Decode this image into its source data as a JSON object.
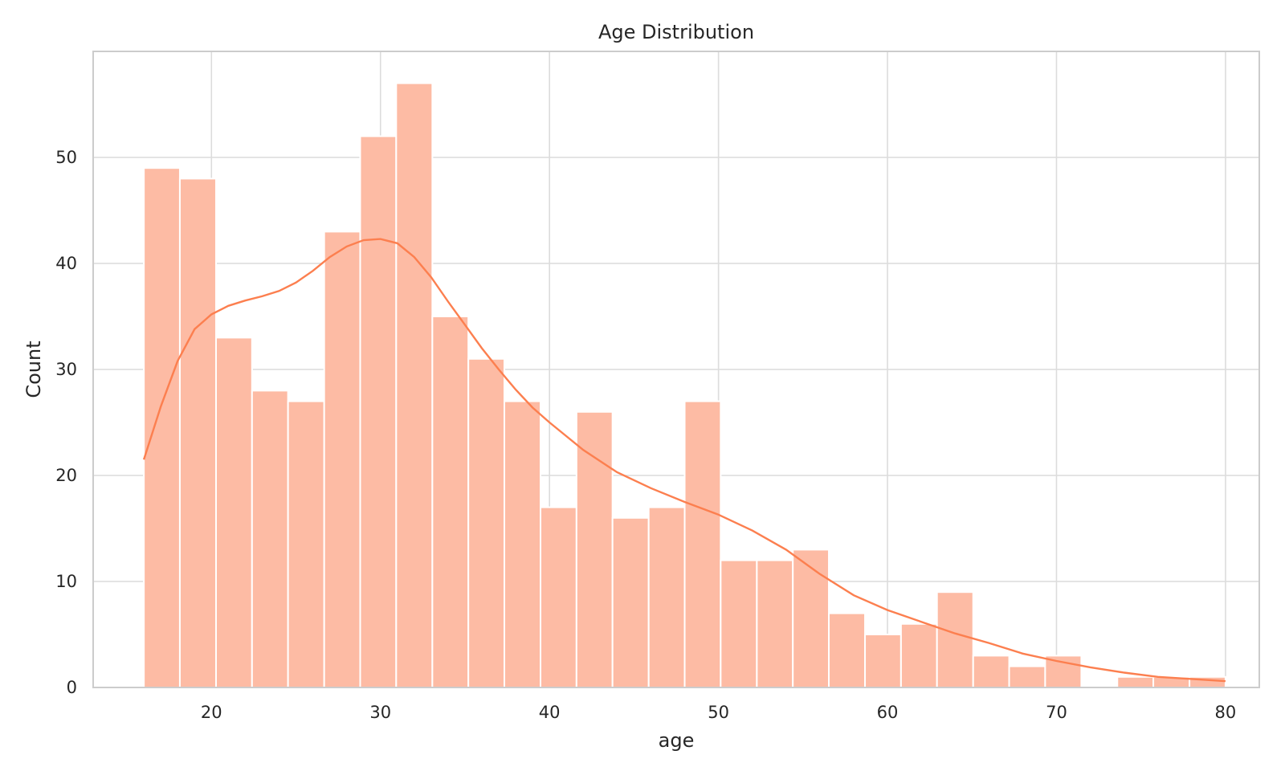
{
  "chart_data": {
    "type": "bar",
    "subtype": "histogram-with-kde",
    "title": "Age Distribution",
    "xlabel": "age",
    "ylabel": "Count",
    "xlim": [
      13,
      82
    ],
    "ylim": [
      0,
      60
    ],
    "xticks": [
      20,
      30,
      40,
      50,
      60,
      70,
      80
    ],
    "yticks": [
      0,
      10,
      20,
      30,
      40,
      50
    ],
    "grid": true,
    "colors": {
      "bar": "#fdbba4",
      "kde": "#fc7f4f",
      "grid": "#dcdcdc",
      "frame": "#cccccc",
      "text": "#262626"
    },
    "bins": [
      {
        "start": 16.0,
        "end": 18.13,
        "count": 49
      },
      {
        "start": 18.13,
        "end": 20.27,
        "count": 48
      },
      {
        "start": 20.27,
        "end": 22.4,
        "count": 33
      },
      {
        "start": 22.4,
        "end": 24.53,
        "count": 28
      },
      {
        "start": 24.53,
        "end": 26.67,
        "count": 27
      },
      {
        "start": 26.67,
        "end": 28.8,
        "count": 43
      },
      {
        "start": 28.8,
        "end": 30.93,
        "count": 52
      },
      {
        "start": 30.93,
        "end": 33.07,
        "count": 57
      },
      {
        "start": 33.07,
        "end": 35.2,
        "count": 35
      },
      {
        "start": 35.2,
        "end": 37.33,
        "count": 31
      },
      {
        "start": 37.33,
        "end": 39.47,
        "count": 27
      },
      {
        "start": 39.47,
        "end": 41.6,
        "count": 17
      },
      {
        "start": 41.6,
        "end": 43.73,
        "count": 26
      },
      {
        "start": 43.73,
        "end": 45.87,
        "count": 16
      },
      {
        "start": 45.87,
        "end": 48.0,
        "count": 17
      },
      {
        "start": 48.0,
        "end": 50.13,
        "count": 27
      },
      {
        "start": 50.13,
        "end": 52.27,
        "count": 12
      },
      {
        "start": 52.27,
        "end": 54.4,
        "count": 12
      },
      {
        "start": 54.4,
        "end": 56.53,
        "count": 13
      },
      {
        "start": 56.53,
        "end": 58.67,
        "count": 7
      },
      {
        "start": 58.67,
        "end": 60.8,
        "count": 5
      },
      {
        "start": 60.8,
        "end": 62.93,
        "count": 6
      },
      {
        "start": 62.93,
        "end": 65.07,
        "count": 9
      },
      {
        "start": 65.07,
        "end": 67.2,
        "count": 3
      },
      {
        "start": 67.2,
        "end": 69.33,
        "count": 2
      },
      {
        "start": 69.33,
        "end": 71.47,
        "count": 3
      },
      {
        "start": 71.47,
        "end": 73.6,
        "count": 0
      },
      {
        "start": 73.6,
        "end": 75.73,
        "count": 1
      },
      {
        "start": 75.73,
        "end": 77.87,
        "count": 1
      },
      {
        "start": 77.87,
        "end": 80.0,
        "count": 1
      }
    ],
    "kde": {
      "x": [
        16,
        17,
        18,
        19,
        20,
        21,
        22,
        23,
        24,
        25,
        26,
        27,
        28,
        29,
        30,
        31,
        32,
        33,
        34,
        35,
        36,
        37,
        38,
        39,
        40,
        42,
        44,
        46,
        48,
        50,
        52,
        54,
        56,
        58,
        60,
        62,
        64,
        66,
        68,
        70,
        72,
        74,
        76,
        78,
        80
      ],
      "y": [
        21.5,
        26.5,
        30.8,
        33.8,
        35.2,
        36.0,
        36.5,
        36.9,
        37.4,
        38.2,
        39.3,
        40.6,
        41.6,
        42.2,
        42.3,
        41.9,
        40.6,
        38.7,
        36.4,
        34.2,
        32.0,
        30.0,
        28.1,
        26.4,
        25.0,
        22.4,
        20.3,
        18.8,
        17.5,
        16.3,
        14.8,
        13.0,
        10.7,
        8.7,
        7.3,
        6.2,
        5.1,
        4.2,
        3.2,
        2.5,
        1.9,
        1.4,
        1.0,
        0.8,
        0.6
      ]
    }
  }
}
